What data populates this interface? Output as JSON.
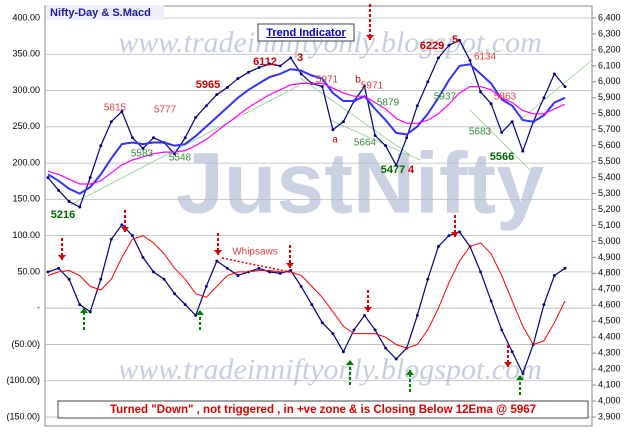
{
  "chart_data": {
    "type": "line",
    "title": "Nifty-Day & S.Macd",
    "subtitle": "Trend Indicator",
    "watermarks": [
      "www.tradeinniftyonly.blogspot.com",
      "JustNifty",
      "www.tradeinniftyonly.blogspot.com"
    ],
    "footer": "Turned \"Down\" ,  not triggered , in +ve zone & is Closing  Below 12Ema @ 5967",
    "annotations": [
      "5216",
      "5815",
      "5583",
      "5548",
      "5777",
      "5965",
      "6112",
      "3",
      "5971",
      "a",
      "b",
      "5971",
      "5664",
      "5879",
      "5477",
      "4",
      "6229",
      "5",
      "6134",
      "5937",
      "5863",
      "5683",
      "5566",
      "Whipsaws"
    ],
    "ylim": [
      -150,
      400
    ],
    "yticks": [
      {
        "value": 400,
        "label": "400.00"
      },
      {
        "value": 350,
        "label": "350.00"
      },
      {
        "value": 300,
        "label": "300.00"
      },
      {
        "value": 250,
        "label": "250.00"
      },
      {
        "value": 200,
        "label": "200.00"
      },
      {
        "value": 150,
        "label": "150.00"
      },
      {
        "value": 100,
        "label": "100.00"
      },
      {
        "value": 50,
        "label": "50.00"
      },
      {
        "value": 0,
        "label": "-"
      },
      {
        "value": -50,
        "label": "(50.00)"
      },
      {
        "value": -100,
        "label": "(100.00)"
      },
      {
        "value": -150,
        "label": "(150.00)"
      }
    ],
    "y2lim": [
      3900,
      6400
    ],
    "y2ticks": [
      {
        "value": 6400,
        "label": "6,400"
      },
      {
        "value": 6300,
        "label": "6,300"
      },
      {
        "value": 6200,
        "label": "6,200"
      },
      {
        "value": 6100,
        "label": "6,100"
      },
      {
        "value": 6000,
        "label": "6,000"
      },
      {
        "value": 5900,
        "label": "5,900"
      },
      {
        "value": 5800,
        "label": "5,800"
      },
      {
        "value": 5700,
        "label": "5,700"
      },
      {
        "value": 5600,
        "label": "5,600"
      },
      {
        "value": 5500,
        "label": "5,500"
      },
      {
        "value": 5400,
        "label": "5,400"
      },
      {
        "value": 5300,
        "label": "5,300"
      },
      {
        "value": 5200,
        "label": "5,200"
      },
      {
        "value": 5100,
        "label": "5,100"
      },
      {
        "value": 5000,
        "label": "5,000"
      },
      {
        "value": 4900,
        "label": "4,900"
      },
      {
        "value": 4800,
        "label": "4,800"
      },
      {
        "value": 4700,
        "label": "4,700"
      },
      {
        "value": 4600,
        "label": "4,600"
      },
      {
        "value": 4500,
        "label": "4,500"
      },
      {
        "value": 4400,
        "label": "4,400"
      },
      {
        "value": 4300,
        "label": "4,300"
      },
      {
        "value": 4200,
        "label": "4,200"
      },
      {
        "value": 4100,
        "label": "4,100"
      },
      {
        "value": 4000,
        "label": "4,000"
      },
      {
        "value": 3900,
        "label": "3,900"
      }
    ],
    "grid": true,
    "series": [
      {
        "color": "#000080",
        "axis": "y2",
        "values": [
          5400,
          5320,
          5250,
          5216,
          5400,
          5600,
          5750,
          5815,
          5650,
          5583,
          5650,
          5620,
          5548,
          5650,
          5777,
          5850,
          5920,
          5965,
          6020,
          6060,
          6090,
          6112,
          6100,
          6150,
          6050,
          5990,
          5971,
          5700,
          5750,
          5880,
          5971,
          5664,
          5600,
          5477,
          5650,
          5850,
          6000,
          6150,
          6229,
          6260,
          6134,
          5937,
          5863,
          5683,
          5750,
          5566,
          5750,
          5900,
          6050,
          5970
        ]
      },
      {
        "color": "#3333ff",
        "axis": "y2",
        "values": [
          5420,
          5380,
          5330,
          5300,
          5340,
          5420,
          5520,
          5610,
          5620,
          5610,
          5620,
          5620,
          5600,
          5610,
          5660,
          5720,
          5780,
          5840,
          5900,
          5950,
          5990,
          6030,
          6050,
          6080,
          6070,
          6040,
          6020,
          5930,
          5880,
          5880,
          5910,
          5830,
          5760,
          5680,
          5670,
          5720,
          5800,
          5900,
          6010,
          6100,
          6110,
          6050,
          5990,
          5890,
          5850,
          5760,
          5750,
          5790,
          5870,
          5900
        ]
      },
      {
        "color": "#ff00ff",
        "axis": "y2",
        "values": [
          5440,
          5420,
          5390,
          5360,
          5360,
          5380,
          5430,
          5480,
          5510,
          5530,
          5550,
          5560,
          5560,
          5570,
          5600,
          5640,
          5690,
          5740,
          5790,
          5840,
          5880,
          5920,
          5950,
          5980,
          5990,
          5990,
          5990,
          5960,
          5930,
          5910,
          5910,
          5870,
          5830,
          5770,
          5740,
          5740,
          5760,
          5800,
          5860,
          5930,
          5970,
          5970,
          5950,
          5900,
          5870,
          5820,
          5800,
          5800,
          5830,
          5860
        ]
      },
      {
        "color": "#000080",
        "values": [
          50,
          55,
          40,
          5,
          -5,
          40,
          95,
          115,
          100,
          70,
          50,
          40,
          20,
          5,
          -10,
          30,
          65,
          55,
          45,
          50,
          55,
          50,
          48,
          52,
          30,
          5,
          -20,
          -35,
          -60,
          -30,
          -10,
          -30,
          -55,
          -70,
          -55,
          -10,
          40,
          85,
          100,
          105,
          85,
          50,
          10,
          -30,
          -60,
          -90,
          -50,
          5,
          45,
          55
        ]
      },
      {
        "color": "#ff0000",
        "values": [
          45,
          50,
          52,
          45,
          30,
          25,
          40,
          70,
          95,
          100,
          90,
          75,
          55,
          40,
          20,
          15,
          30,
          45,
          50,
          50,
          52,
          52,
          50,
          50,
          45,
          30,
          15,
          -5,
          -25,
          -35,
          -35,
          -35,
          -40,
          -50,
          -55,
          -50,
          -30,
          0,
          35,
          65,
          85,
          90,
          75,
          45,
          10,
          -25,
          -50,
          -45,
          -20,
          10
        ]
      }
    ]
  }
}
